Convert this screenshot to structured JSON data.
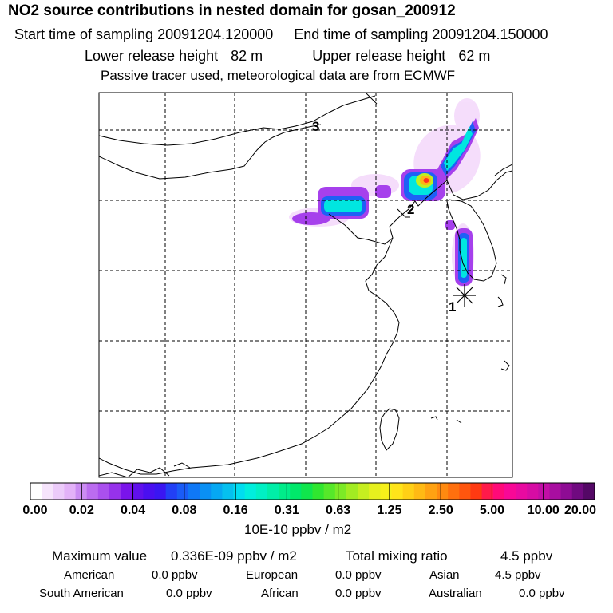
{
  "header": {
    "title": "NO2 source contributions in nested domain for gosan_200912",
    "start_label": "Start time of sampling",
    "start_value": "20091204.120000",
    "end_label": "End time of sampling",
    "end_value": "20091204.150000",
    "lower_label": "Lower release height",
    "lower_value": "82 m",
    "upper_label": "Upper release height",
    "upper_value": "62 m",
    "note": "Passive tracer used, meteorological data are from ECMWF"
  },
  "map": {
    "markers": [
      {
        "label": "1",
        "role": "receptor"
      },
      {
        "label": "2",
        "role": "source"
      },
      {
        "label": "3",
        "role": "source"
      }
    ]
  },
  "colorbar": {
    "ticks": [
      "0.00",
      "0.02",
      "0.04",
      "0.08",
      "0.16",
      "0.31",
      "0.63",
      "1.25",
      "2.50",
      "5.00",
      "10.00",
      "20.00"
    ],
    "colors": [
      "#ffffff",
      "#f6e4fc",
      "#eccbfa",
      "#e3b2f8",
      "#cb8cf3",
      "#bb6cf0",
      "#aa50ee",
      "#9632eb",
      "#7a14ea",
      "#6010ec",
      "#4a0ff0",
      "#3a16f2",
      "#2240f6",
      "#1a5cf7",
      "#0f78f6",
      "#0a90f4",
      "#06a8f2",
      "#05c0ef",
      "#00ddf0",
      "#00eedd",
      "#00f0c4",
      "#00eea8",
      "#00ec8a",
      "#00e86a",
      "#10e64c",
      "#30e630",
      "#56e82a",
      "#7cea26",
      "#a2ec22",
      "#c6ee20",
      "#e6f01e",
      "#f6f01a",
      "#ffe41a",
      "#ffd016",
      "#ffba14",
      "#ffa212",
      "#ff8a10",
      "#ff700e",
      "#ff560e",
      "#ff3a12",
      "#ff1a4a",
      "#ff0a78",
      "#f80896",
      "#e80aa0",
      "#d60ca4",
      "#c20ea6",
      "#a80ea0",
      "#8e0c94",
      "#700a80",
      "#540866"
    ],
    "unit": "10E-10 ppbv / m2"
  },
  "summary": {
    "max_label": "Maximum value",
    "max_value": "0.336E-09 ppbv / m2",
    "total_label": "Total mixing ratio",
    "total_value": "4.5 ppbv",
    "regions": [
      {
        "name": "American",
        "value": "0.0 ppbv"
      },
      {
        "name": "European",
        "value": "0.0 ppbv"
      },
      {
        "name": "Asian",
        "value": "4.5 ppbv"
      },
      {
        "name": "South American",
        "value": "0.0 ppbv"
      },
      {
        "name": "African",
        "value": "0.0 ppbv"
      },
      {
        "name": "Australian",
        "value": "0.0 ppbv"
      }
    ]
  }
}
